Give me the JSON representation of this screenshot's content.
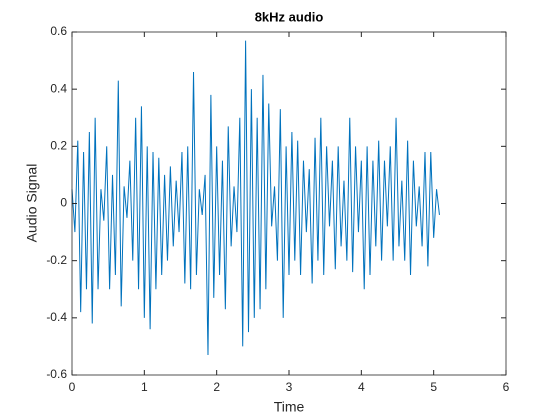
{
  "chart_data": {
    "type": "line",
    "title": "8kHz audio",
    "x_label": "Time",
    "y_label": "Audio Signal",
    "color": "#0072BD",
    "xlim": [
      0,
      6
    ],
    "xticks": [
      0,
      1,
      2,
      3,
      4,
      5,
      6
    ],
    "ylim": [
      -0.6,
      0.6
    ],
    "yticks": [
      -0.6,
      -0.4,
      -0.2,
      0,
      0.2,
      0.4,
      0.6
    ],
    "x": [
      0,
      0.04,
      0.08,
      0.12,
      0.16,
      0.2,
      0.24,
      0.28,
      0.32,
      0.36,
      0.4,
      0.44,
      0.48,
      0.52,
      0.56,
      0.6,
      0.64,
      0.68,
      0.72,
      0.76,
      0.8,
      0.84,
      0.88,
      0.92,
      0.96,
      1,
      1.04,
      1.08,
      1.12,
      1.16,
      1.2,
      1.24,
      1.28,
      1.32,
      1.36,
      1.4,
      1.44,
      1.48,
      1.52,
      1.56,
      1.6,
      1.64,
      1.68,
      1.72,
      1.76,
      1.8,
      1.84,
      1.88,
      1.92,
      1.96,
      2,
      2.04,
      2.08,
      2.12,
      2.16,
      2.2,
      2.24,
      2.28,
      2.32,
      2.36,
      2.4,
      2.44,
      2.48,
      2.52,
      2.56,
      2.6,
      2.64,
      2.68,
      2.72,
      2.76,
      2.8,
      2.84,
      2.88,
      2.92,
      2.96,
      3,
      3.04,
      3.08,
      3.12,
      3.16,
      3.2,
      3.24,
      3.28,
      3.32,
      3.36,
      3.4,
      3.44,
      3.48,
      3.52,
      3.56,
      3.6,
      3.64,
      3.68,
      3.72,
      3.76,
      3.8,
      3.84,
      3.88,
      3.92,
      3.96,
      4,
      4.04,
      4.08,
      4.12,
      4.16,
      4.2,
      4.24,
      4.28,
      4.32,
      4.36,
      4.4,
      4.44,
      4.48,
      4.52,
      4.56,
      4.6,
      4.64,
      4.68,
      4.72,
      4.76,
      4.8,
      4.84,
      4.88,
      4.92,
      4.96,
      5,
      5.04,
      5.08
    ],
    "values": [
      0.05,
      -0.1,
      0.22,
      -0.38,
      0.18,
      -0.3,
      0.25,
      -0.42,
      0.3,
      -0.3,
      0.05,
      -0.06,
      0.2,
      -0.3,
      0.1,
      -0.25,
      0.43,
      -0.36,
      0.06,
      -0.05,
      0.15,
      -0.2,
      0.3,
      -0.3,
      0.34,
      -0.4,
      0.2,
      -0.44,
      0.18,
      -0.3,
      0.16,
      -0.25,
      0.1,
      -0.2,
      0.13,
      -0.15,
      0.08,
      -0.1,
      0.18,
      -0.28,
      0.2,
      -0.3,
      0.46,
      -0.25,
      0.05,
      -0.04,
      0.1,
      -0.53,
      0.38,
      -0.33,
      0.2,
      -0.25,
      0.15,
      -0.37,
      0.27,
      -0.15,
      0.06,
      -0.1,
      0.3,
      -0.5,
      0.57,
      -0.45,
      0.4,
      -0.4,
      0.3,
      -0.37,
      0.45,
      -0.3,
      0.35,
      -0.08,
      0.06,
      -0.2,
      0.33,
      -0.4,
      0.2,
      -0.25,
      0.25,
      -0.2,
      0.22,
      -0.25,
      0.15,
      -0.1,
      0.12,
      -0.28,
      0.23,
      -0.2,
      0.3,
      -0.25,
      0.2,
      -0.08,
      0.15,
      -0.23,
      0.2,
      -0.15,
      0.08,
      -0.2,
      0.3,
      -0.24,
      0.2,
      -0.1,
      0.15,
      -0.3,
      0.2,
      -0.25,
      0.15,
      -0.15,
      0.22,
      -0.2,
      0.15,
      -0.08,
      0.2,
      -0.2,
      0.3,
      -0.15,
      0.08,
      -0.2,
      0.22,
      -0.25,
      0.15,
      -0.08,
      0.06,
      -0.15,
      0.18,
      -0.22,
      0.18,
      -0.12,
      0.05,
      -0.04
    ]
  }
}
